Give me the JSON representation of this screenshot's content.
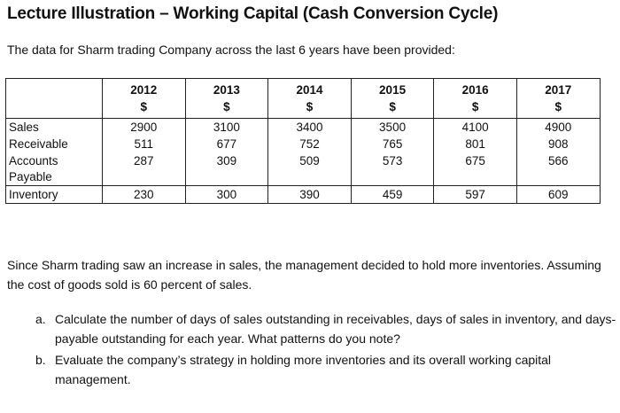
{
  "title": "Lecture Illustration  – Working Capital (Cash Conversion Cycle)",
  "intro": "The data for Sharm trading Company across the last 6 years have been provided:",
  "table": {
    "years": [
      "2012",
      "2013",
      "2014",
      "2015",
      "2016",
      "2017"
    ],
    "currency": "$",
    "rows": [
      {
        "label": "Sales",
        "values": [
          "2900",
          "3100",
          "3400",
          "3500",
          "4100",
          "4900"
        ]
      },
      {
        "label": "Receivable",
        "values": [
          "511",
          "677",
          "752",
          "765",
          "801",
          "908"
        ]
      },
      {
        "label": "Accounts Payable",
        "values": [
          "287",
          "309",
          "509",
          "573",
          "675",
          "566"
        ]
      },
      {
        "label": "Inventory",
        "values": [
          "230",
          "300",
          "390",
          "459",
          "597",
          "609"
        ]
      }
    ]
  },
  "paragraph": "Since Sharm trading saw an increase in sales, the management decided to hold more inventories. Assuming the cost of goods sold is 60 percent of sales.",
  "questions": [
    {
      "marker": "a.",
      "text": "Calculate the number of days of sales outstanding in receivables, days of sales in inventory, and days- payable outstanding for each year. What patterns do you note?"
    },
    {
      "marker": "b.",
      "text": "Evaluate the company’s strategy in holding more inventories and its overall working capital management."
    }
  ]
}
